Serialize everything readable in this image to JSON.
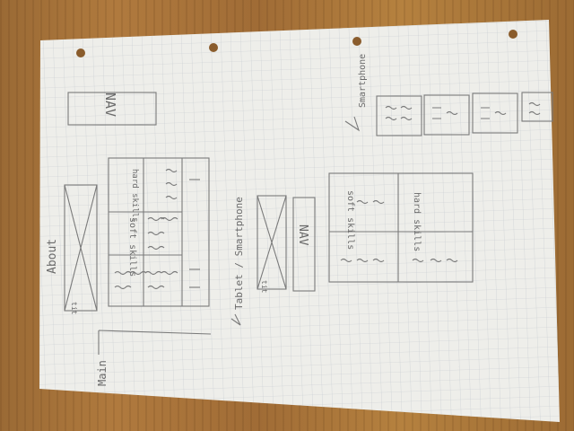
{
  "sketch": {
    "labels": {
      "about": "About",
      "nav_desktop": "NAV",
      "main": "Main",
      "hard_skills": "hard skills",
      "soft_skills": "soft skills",
      "tablet_smartphone": "Tablet / Smartphone",
      "nav_tablet": "NAV",
      "soft_skills_tablet": "soft skills",
      "hard_skills_tablet": "hard skills",
      "smartphone": "Smartphone",
      "img_caption": "tit"
    }
  }
}
